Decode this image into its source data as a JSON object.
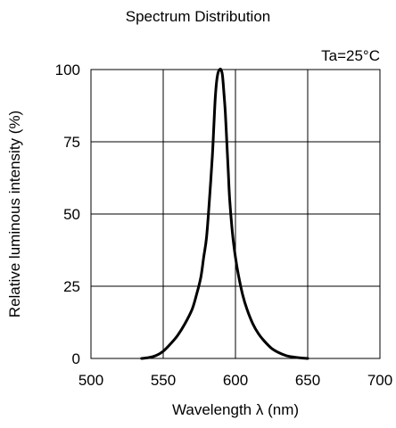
{
  "chart_data": {
    "type": "line",
    "title": "Spectrum Distribution",
    "annotation": "Ta=25°C",
    "xlabel": "Wavelength  λ (nm)",
    "ylabel": "Relative luminous intensity (%)",
    "xlim": [
      500,
      700
    ],
    "ylim": [
      0,
      100
    ],
    "x_ticks": [
      500,
      550,
      600,
      650,
      700
    ],
    "y_ticks": [
      0,
      25,
      50,
      75,
      100
    ],
    "x_tick_labels": [
      "500",
      "550",
      "600",
      "650",
      "700"
    ],
    "y_tick_labels": [
      "0",
      "25",
      "50",
      "75",
      "100"
    ],
    "grid": true,
    "colors": {
      "line": "#000000",
      "grid": "#000000",
      "background": "#ffffff"
    },
    "series": [
      {
        "x": [
          535,
          540,
          545,
          550,
          555,
          560,
          565,
          570,
          573,
          576,
          578,
          580,
          582,
          584,
          585,
          586,
          587,
          588,
          589,
          590,
          591,
          592,
          593,
          594,
          595,
          596,
          598,
          600,
          602,
          605,
          608,
          612,
          616,
          620,
          625,
          630,
          635,
          640,
          645,
          650
        ],
        "y": [
          0,
          0.3,
          1,
          2.5,
          5,
          8,
          12,
          17,
          22,
          28,
          35,
          42,
          55,
          70,
          80,
          90,
          96,
          99,
          100,
          100,
          98,
          92,
          85,
          75,
          65,
          55,
          43,
          35,
          29,
          22,
          17,
          12,
          8.5,
          6,
          3.5,
          2,
          1,
          0.5,
          0.2,
          0
        ]
      }
    ]
  }
}
